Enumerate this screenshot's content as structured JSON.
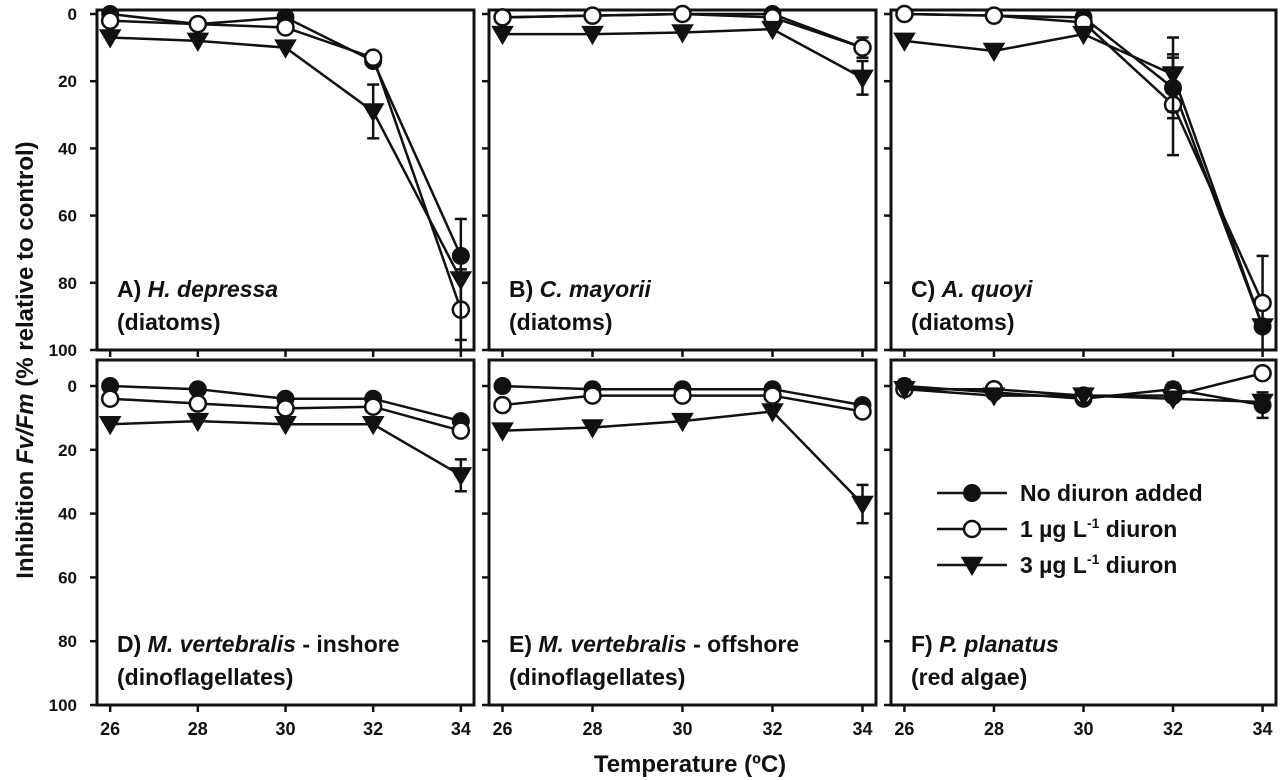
{
  "chart_data": {
    "type": "line",
    "ylabel_prefix": "Inhibition ",
    "ylabel_italic": "Fv/Fm",
    "ylabel_suffix": " (% relative to control)",
    "xlabel": "Temperature (ºC)",
    "x_ticks": [
      "26",
      "28",
      "30",
      "32",
      "34"
    ],
    "y_ticks": [
      "0",
      "20",
      "40",
      "60",
      "80",
      "100"
    ],
    "ylim": [
      100,
      0
    ],
    "xlim": [
      25.7,
      34.3
    ],
    "y_inverted": true,
    "legend": {
      "location": "panel F, center-right",
      "entries": [
        {
          "marker": "filled-circle",
          "parts": [
            {
              "t": "No diuron added"
            }
          ]
        },
        {
          "marker": "open-circle",
          "parts": [
            {
              "t": "1 µg L"
            },
            {
              "t": "-1",
              "sup": true
            },
            {
              "t": " diuron"
            }
          ]
        },
        {
          "marker": "filled-triangle-down",
          "parts": [
            {
              "t": "3 µg L"
            },
            {
              "t": "-1",
              "sup": true
            },
            {
              "t": " diuron"
            }
          ]
        }
      ]
    },
    "panels": [
      {
        "id": "A",
        "title_prefix": "A) ",
        "title_italic": "H. depressa",
        "title_suffix": "",
        "subtitle": "(diatoms)",
        "series": [
          {
            "marker": "filled-circle",
            "x": [
              26,
              28,
              30,
              32,
              34
            ],
            "y": [
              0,
              3,
              1,
              14,
              72
            ],
            "err": [
              0,
              0,
              0,
              0,
              0
            ]
          },
          {
            "marker": "open-circle",
            "x": [
              26,
              28,
              30,
              32,
              34
            ],
            "y": [
              2,
              3,
              4,
              13,
              88
            ],
            "err": [
              0,
              0,
              0,
              0,
              12
            ]
          },
          {
            "marker": "filled-triangle-down",
            "x": [
              26,
              28,
              30,
              32,
              34
            ],
            "y": [
              7,
              8,
              10,
              29,
              79
            ],
            "err": [
              0,
              0,
              0,
              8,
              18
            ]
          }
        ]
      },
      {
        "id": "B",
        "title_prefix": "B) ",
        "title_italic": "C. mayorii",
        "title_suffix": "",
        "subtitle": "(diatoms)",
        "series": [
          {
            "marker": "filled-circle",
            "x": [
              26,
              28,
              30,
              32,
              34
            ],
            "y": [
              1,
              0.5,
              0,
              0,
              10
            ],
            "err": [
              0,
              0,
              0,
              0,
              0
            ]
          },
          {
            "marker": "open-circle",
            "x": [
              26,
              28,
              30,
              32,
              34
            ],
            "y": [
              1,
              0.5,
              0,
              1,
              10
            ],
            "err": [
              0,
              0,
              0,
              0,
              3
            ]
          },
          {
            "marker": "filled-triangle-down",
            "x": [
              26,
              28,
              30,
              32,
              34
            ],
            "y": [
              6,
              6,
              5.5,
              4.5,
              19
            ],
            "err": [
              0,
              0,
              0,
              0,
              5
            ]
          }
        ]
      },
      {
        "id": "C",
        "title_prefix": "C) ",
        "title_italic": "A. quoyi",
        "title_suffix": "",
        "subtitle": "(diatoms)",
        "series": [
          {
            "marker": "filled-circle",
            "x": [
              26,
              28,
              30,
              32,
              34
            ],
            "y": [
              0,
              0.5,
              1,
              22,
              93
            ],
            "err": [
              0,
              0,
              0,
              9,
              0
            ]
          },
          {
            "marker": "open-circle",
            "x": [
              26,
              28,
              30,
              32,
              34
            ],
            "y": [
              0,
              0.5,
              2.5,
              27,
              86
            ],
            "err": [
              0,
              0,
              0,
              15,
              14
            ]
          },
          {
            "marker": "filled-triangle-down",
            "x": [
              26,
              28,
              30,
              32,
              34
            ],
            "y": [
              8,
              11,
              6,
              18,
              93
            ],
            "err": [
              0,
              0,
              0,
              11,
              0
            ]
          }
        ]
      },
      {
        "id": "D",
        "title_prefix": "D) ",
        "title_italic": "M. vertebralis",
        "title_suffix": " - inshore",
        "subtitle": "(dinoflagellates)",
        "series": [
          {
            "marker": "filled-circle",
            "x": [
              26,
              28,
              30,
              32,
              34
            ],
            "y": [
              0,
              1,
              4,
              4,
              11
            ],
            "err": [
              0,
              0,
              0,
              0,
              0
            ]
          },
          {
            "marker": "open-circle",
            "x": [
              26,
              28,
              30,
              32,
              34
            ],
            "y": [
              4,
              5.5,
              7,
              6.5,
              14
            ],
            "err": [
              0,
              0,
              0,
              0,
              0
            ]
          },
          {
            "marker": "filled-triangle-down",
            "x": [
              26,
              28,
              30,
              32,
              34
            ],
            "y": [
              12,
              11,
              12,
              12,
              28
            ],
            "err": [
              0,
              0,
              0,
              0,
              5
            ]
          }
        ]
      },
      {
        "id": "E",
        "title_prefix": "E) ",
        "title_italic": "M. vertebralis",
        "title_suffix": " - offshore",
        "subtitle": "(dinoflagellates)",
        "series": [
          {
            "marker": "filled-circle",
            "x": [
              26,
              28,
              30,
              32,
              34
            ],
            "y": [
              0,
              1,
              1,
              1,
              6
            ],
            "err": [
              0,
              0,
              0,
              0,
              0
            ]
          },
          {
            "marker": "open-circle",
            "x": [
              26,
              28,
              30,
              32,
              34
            ],
            "y": [
              6,
              3,
              3,
              3,
              8
            ],
            "err": [
              0,
              0,
              0,
              0,
              0
            ]
          },
          {
            "marker": "filled-triangle-down",
            "x": [
              26,
              28,
              30,
              32,
              34
            ],
            "y": [
              14,
              13,
              11,
              8,
              37
            ],
            "err": [
              0,
              0,
              0,
              0,
              6
            ]
          }
        ]
      },
      {
        "id": "F",
        "title_prefix": "F) ",
        "title_italic": "P. planatus",
        "title_suffix": "",
        "subtitle": "(red algae)",
        "series": [
          {
            "marker": "filled-circle",
            "x": [
              26,
              28,
              30,
              32,
              34
            ],
            "y": [
              0,
              2,
              4,
              1,
              6
            ],
            "err": [
              2,
              0,
              0,
              2,
              4
            ]
          },
          {
            "marker": "open-circle",
            "x": [
              26,
              28,
              30,
              32,
              34
            ],
            "y": [
              1,
              1,
              3,
              3,
              -4
            ],
            "err": [
              0,
              0,
              0,
              0,
              0
            ]
          },
          {
            "marker": "filled-triangle-down",
            "x": [
              26,
              28,
              30,
              32,
              34
            ],
            "y": [
              1,
              3,
              3,
              4,
              5
            ],
            "err": [
              0,
              0,
              0,
              0,
              0
            ]
          }
        ]
      }
    ]
  }
}
